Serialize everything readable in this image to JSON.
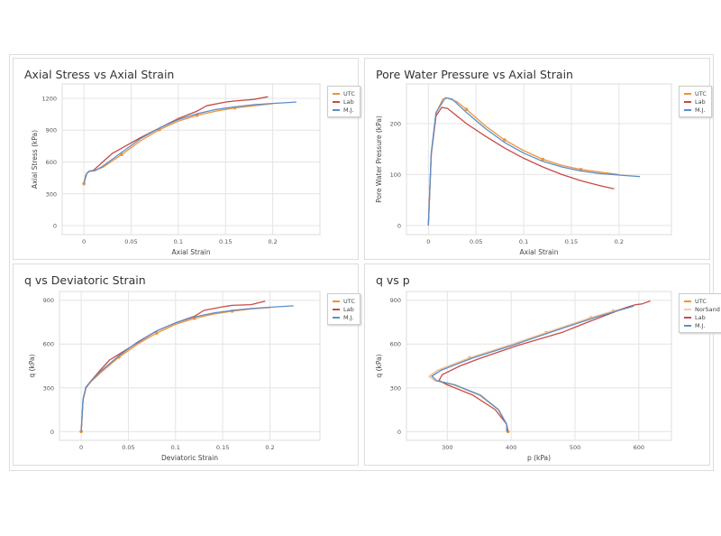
{
  "colors": {
    "UTC": "#f0923a",
    "NorSand": "#f5c9a0",
    "Lab": "#c94a47",
    "M.J.": "#5b8fc9"
  },
  "chart_data": [
    {
      "type": "line",
      "title": "Axial Stress vs Axial Strain",
      "xlabel": "Axial Strain",
      "ylabel": "Axial Stress (kPa)",
      "xlim": [
        -0.023,
        0.25
      ],
      "ylim": [
        -85,
        1336
      ],
      "xticks": [
        0,
        0.05,
        0.1,
        0.15,
        0.2
      ],
      "xtick_labels": [
        "0",
        "0.05",
        "0.1",
        "0.15",
        "0.2"
      ],
      "yticks": [
        0,
        300,
        600,
        900,
        1200
      ],
      "ytick_labels": [
        "0",
        "300",
        "600",
        "900",
        "1200"
      ],
      "grid": true,
      "legend": "right",
      "series": [
        {
          "name": "UTC",
          "x": [
            0,
            0.002,
            0.005,
            0.01,
            0.02,
            0.04,
            0.06,
            0.08,
            0.1,
            0.12,
            0.14,
            0.16,
            0.18,
            0.2
          ],
          "y": [
            395,
            480,
            510,
            515,
            550,
            670,
            800,
            905,
            985,
            1040,
            1080,
            1110,
            1130,
            1150
          ],
          "markers_x": [
            0,
            0.04,
            0.08,
            0.12,
            0.16
          ],
          "markers_y": [
            395,
            670,
            905,
            1040,
            1110
          ]
        },
        {
          "name": "Lab",
          "x": [
            0,
            0.003,
            0.006,
            0.01,
            0.02,
            0.03,
            0.04,
            0.06,
            0.08,
            0.1,
            0.12,
            0.13,
            0.15,
            0.16,
            0.18,
            0.195
          ],
          "y": [
            400,
            490,
            515,
            520,
            600,
            680,
            730,
            830,
            920,
            1010,
            1080,
            1130,
            1165,
            1175,
            1190,
            1215
          ]
        },
        {
          "name": "M.J.",
          "x": [
            0,
            0.003,
            0.006,
            0.012,
            0.02,
            0.04,
            0.06,
            0.08,
            0.1,
            0.12,
            0.14,
            0.16,
            0.18,
            0.2,
            0.225
          ],
          "y": [
            400,
            490,
            515,
            518,
            560,
            690,
            820,
            920,
            1000,
            1055,
            1095,
            1120,
            1140,
            1152,
            1165
          ]
        }
      ]
    },
    {
      "type": "line",
      "title": "Pore Water Pressure vs Axial Strain",
      "xlabel": "Axial Strain",
      "ylabel": "Pore Water Pressure (kPa)",
      "xlim": [
        -0.023,
        0.255
      ],
      "ylim": [
        -18,
        278
      ],
      "xticks": [
        0,
        0.05,
        0.1,
        0.15,
        0.2
      ],
      "xtick_labels": [
        "0",
        "0.05",
        "0.1",
        "0.15",
        "0.2"
      ],
      "yticks": [
        0,
        100,
        200
      ],
      "ytick_labels": [
        "0",
        "100",
        "200"
      ],
      "grid": true,
      "legend": "right",
      "series": [
        {
          "name": "UTC",
          "x": [
            0,
            0.003,
            0.008,
            0.015,
            0.02,
            0.03,
            0.04,
            0.06,
            0.08,
            0.1,
            0.12,
            0.14,
            0.16,
            0.18,
            0.2
          ],
          "y": [
            0,
            140,
            220,
            248,
            250,
            243,
            228,
            195,
            168,
            147,
            130,
            118,
            110,
            105,
            100
          ],
          "markers_x": [
            0.04,
            0.08,
            0.12,
            0.16
          ],
          "markers_y": [
            228,
            168,
            130,
            110
          ]
        },
        {
          "name": "Lab",
          "x": [
            0,
            0.003,
            0.008,
            0.014,
            0.02,
            0.04,
            0.06,
            0.08,
            0.1,
            0.12,
            0.14,
            0.16,
            0.18,
            0.195
          ],
          "y": [
            0,
            140,
            215,
            232,
            230,
            200,
            175,
            152,
            132,
            115,
            100,
            88,
            78,
            72
          ]
        },
        {
          "name": "M.J.",
          "x": [
            0,
            0.003,
            0.008,
            0.018,
            0.025,
            0.04,
            0.06,
            0.08,
            0.1,
            0.12,
            0.14,
            0.16,
            0.18,
            0.2,
            0.222
          ],
          "y": [
            0,
            142,
            222,
            251,
            248,
            222,
            190,
            163,
            142,
            126,
            115,
            107,
            102,
            99,
            96
          ]
        }
      ]
    },
    {
      "type": "line",
      "title": "q vs Deviatoric Strain",
      "xlabel": "Deviatoric Strain",
      "ylabel": "q (kPa)",
      "xlim": [
        -0.023,
        0.253
      ],
      "ylim": [
        -60,
        960
      ],
      "xticks": [
        0,
        0.05,
        0.1,
        0.15,
        0.2
      ],
      "xtick_labels": [
        "0",
        "0.05",
        "0.1",
        "0.15",
        "0.2"
      ],
      "yticks": [
        0,
        300,
        600,
        900
      ],
      "ytick_labels": [
        "0",
        "300",
        "600",
        "900"
      ],
      "grid": true,
      "legend": "right",
      "series": [
        {
          "name": "UTC",
          "x": [
            0,
            0.002,
            0.005,
            0.01,
            0.02,
            0.04,
            0.06,
            0.08,
            0.1,
            0.12,
            0.14,
            0.16,
            0.18,
            0.2
          ],
          "y": [
            0,
            220,
            300,
            340,
            400,
            510,
            600,
            675,
            735,
            775,
            805,
            825,
            840,
            850
          ],
          "markers_x": [
            0,
            0.04,
            0.08,
            0.12,
            0.16
          ],
          "markers_y": [
            0,
            510,
            675,
            775,
            825
          ]
        },
        {
          "name": "Lab",
          "x": [
            0,
            0.002,
            0.005,
            0.01,
            0.02,
            0.03,
            0.04,
            0.06,
            0.08,
            0.1,
            0.12,
            0.13,
            0.15,
            0.16,
            0.18,
            0.195
          ],
          "y": [
            0,
            220,
            300,
            345,
            420,
            490,
            530,
            610,
            690,
            745,
            790,
            830,
            855,
            865,
            870,
            893
          ]
        },
        {
          "name": "M.J.",
          "x": [
            0,
            0.002,
            0.005,
            0.01,
            0.02,
            0.04,
            0.06,
            0.08,
            0.1,
            0.12,
            0.14,
            0.16,
            0.18,
            0.2,
            0.225
          ],
          "y": [
            0,
            225,
            305,
            345,
            410,
            520,
            615,
            690,
            745,
            785,
            812,
            830,
            843,
            852,
            862
          ]
        }
      ]
    },
    {
      "type": "line",
      "title": "q vs p",
      "xlabel": "p (kPa)",
      "ylabel": "q (kPa)",
      "xlim": [
        236,
        651
      ],
      "ylim": [
        -60,
        960
      ],
      "xticks": [
        300,
        400,
        500,
        600
      ],
      "xtick_labels": [
        "300",
        "400",
        "500",
        "600"
      ],
      "yticks": [
        0,
        300,
        600,
        900
      ],
      "ytick_labels": [
        "0",
        "300",
        "600",
        "900"
      ],
      "grid": true,
      "legend": "right",
      "series": [
        {
          "name": "UTC",
          "x": [
            395,
            393,
            380,
            350,
            310,
            280,
            272,
            285,
            335,
            400,
            455,
            525,
            560,
            590
          ],
          "y": [
            0,
            50,
            150,
            250,
            320,
            350,
            380,
            420,
            505,
            595,
            678,
            780,
            825,
            860
          ],
          "markers_x": [
            395,
            335,
            455,
            525,
            560
          ],
          "markers_y": [
            0,
            505,
            678,
            780,
            825
          ]
        },
        {
          "name": "NorSand",
          "x": [
            395,
            393,
            381,
            351,
            311,
            281,
            271,
            284,
            334,
            399,
            454,
            524,
            559,
            589
          ],
          "y": [
            0,
            50,
            150,
            250,
            320,
            350,
            378,
            420,
            505,
            595,
            678,
            780,
            825,
            860
          ]
        },
        {
          "name": "Lab",
          "x": [
            395,
            393,
            375,
            340,
            300,
            287,
            292,
            320,
            350,
            410,
            480,
            520,
            580,
            595,
            605,
            618
          ],
          "y": [
            0,
            50,
            150,
            250,
            320,
            350,
            390,
            450,
            500,
            590,
            680,
            750,
            850,
            870,
            875,
            895
          ]
        },
        {
          "name": "M.J.",
          "x": [
            393,
            393,
            380,
            352,
            312,
            283,
            276,
            290,
            340,
            405,
            460,
            530,
            565,
            592
          ],
          "y": [
            0,
            50,
            150,
            250,
            320,
            350,
            380,
            420,
            505,
            595,
            678,
            780,
            825,
            860
          ]
        }
      ]
    }
  ]
}
